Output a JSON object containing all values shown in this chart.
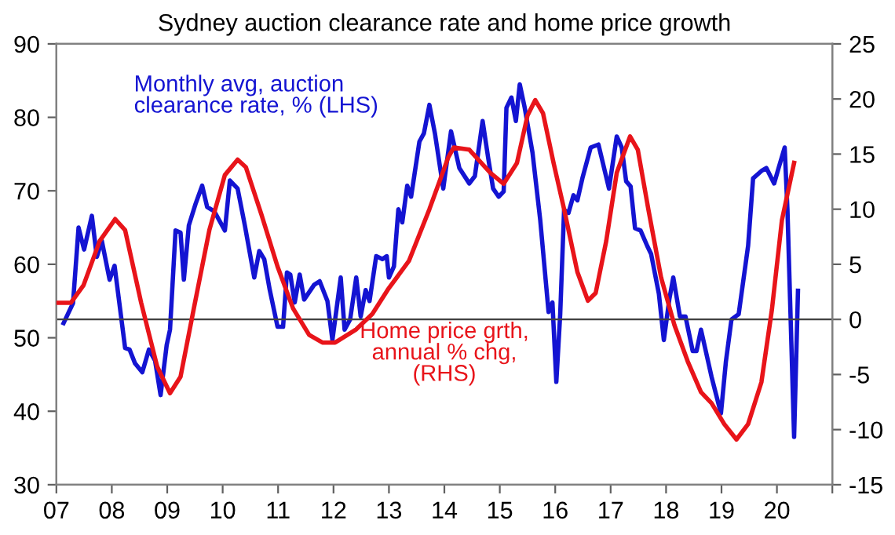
{
  "chart_data": {
    "type": "line",
    "title": "Sydney auction clearance rate and home price growth",
    "xlim": [
      2007,
      2021
    ],
    "xticks": [
      {
        "value": 2007,
        "label": "07"
      },
      {
        "value": 2008,
        "label": "08"
      },
      {
        "value": 2009,
        "label": "09"
      },
      {
        "value": 2010,
        "label": "10"
      },
      {
        "value": 2011,
        "label": "11"
      },
      {
        "value": 2012,
        "label": "12"
      },
      {
        "value": 2013,
        "label": "13"
      },
      {
        "value": 2014,
        "label": "14"
      },
      {
        "value": 2015,
        "label": "15"
      },
      {
        "value": 2016,
        "label": "16"
      },
      {
        "value": 2017,
        "label": "17"
      },
      {
        "value": 2018,
        "label": "18"
      },
      {
        "value": 2019,
        "label": "19"
      },
      {
        "value": 2020,
        "label": "20"
      },
      {
        "value": 2021,
        "label": null
      }
    ],
    "ylim": [
      30,
      90
    ],
    "yticks": [
      30,
      40,
      50,
      60,
      70,
      80,
      90
    ],
    "y2lim": [
      -15,
      25
    ],
    "y2ticks": [
      -15,
      -10,
      -5,
      0,
      5,
      10,
      15,
      20,
      25
    ],
    "ref_lines": [
      {
        "axis": "y2",
        "value": 0,
        "color": "#404040"
      }
    ],
    "grid": false,
    "legend": false,
    "marker": "none",
    "line_style": "solid",
    "series": [
      {
        "name": "Monthly avg, auction\nclearance rate, % (LHS)",
        "color": "#1414d2",
        "axis": "y",
        "x": [
          2007.13,
          2007.3,
          2007.4,
          2007.5,
          2007.64,
          2007.73,
          2007.82,
          2007.96,
          2008.05,
          2008.24,
          2008.32,
          2008.42,
          2008.55,
          2008.67,
          2008.78,
          2008.88,
          2008.99,
          2009.05,
          2009.15,
          2009.24,
          2009.3,
          2009.39,
          2009.51,
          2009.63,
          2009.72,
          2009.85,
          2010.04,
          2010.13,
          2010.27,
          2010.4,
          2010.57,
          2010.66,
          2010.75,
          2010.85,
          2010.99,
          2011.09,
          2011.16,
          2011.22,
          2011.3,
          2011.39,
          2011.47,
          2011.65,
          2011.75,
          2011.89,
          2011.98,
          2012.13,
          2012.2,
          2012.3,
          2012.41,
          2012.49,
          2012.58,
          2012.65,
          2012.77,
          2012.88,
          2012.96,
          2013.0,
          2013.09,
          2013.17,
          2013.24,
          2013.33,
          2013.4,
          2013.55,
          2013.63,
          2013.73,
          2013.83,
          2013.98,
          2014.12,
          2014.27,
          2014.45,
          2014.55,
          2014.69,
          2014.79,
          2014.88,
          2014.98,
          2015.07,
          2015.12,
          2015.21,
          2015.29,
          2015.36,
          2015.45,
          2015.59,
          2015.73,
          2015.88,
          2015.95,
          2016.02,
          2016.09,
          2016.16,
          2016.24,
          2016.33,
          2016.4,
          2016.49,
          2016.64,
          2016.78,
          2016.97,
          2017.11,
          2017.2,
          2017.28,
          2017.36,
          2017.44,
          2017.54,
          2017.66,
          2017.73,
          2017.87,
          2017.96,
          2018.06,
          2018.13,
          2018.25,
          2018.35,
          2018.48,
          2018.55,
          2018.63,
          2018.82,
          2018.99,
          2019.08,
          2019.18,
          2019.31,
          2019.48,
          2019.57,
          2019.72,
          2019.81,
          2019.95,
          2020.03,
          2020.14,
          2020.19,
          2020.31,
          2020.38
        ],
        "values": [
          52.0,
          54.7,
          65,
          62,
          66.6,
          61,
          63.2,
          57.9,
          59.8,
          48.6,
          48.4,
          46.5,
          45.3,
          48.4,
          46.9,
          42.2,
          49,
          51.1,
          64.6,
          64.3,
          57.9,
          65.3,
          68.2,
          70.7,
          67.8,
          67.2,
          64.6,
          71.4,
          70.3,
          65.3,
          58.2,
          61.8,
          60.7,
          56.5,
          51.5,
          51.5,
          58.9,
          58.6,
          54.8,
          58.6,
          55.2,
          57.2,
          57.7,
          55,
          49.7,
          58.2,
          51.1,
          52.5,
          58.2,
          52.9,
          56.5,
          55,
          61.1,
          60.7,
          61.1,
          58.2,
          59.7,
          67.5,
          65.7,
          70.7,
          69.2,
          76.7,
          77.8,
          81.7,
          77.8,
          70.3,
          78.1,
          73.1,
          71,
          72,
          79.5,
          74.5,
          70.3,
          69.2,
          69.9,
          81.3,
          82.7,
          79.5,
          84.5,
          81.3,
          75.2,
          66,
          53.5,
          54.8,
          44,
          53.2,
          67.4,
          67,
          69.4,
          68.7,
          71.7,
          75.9,
          76.3,
          70.3,
          77.4,
          75.9,
          71.3,
          70.6,
          64.9,
          64.6,
          62.5,
          61.4,
          56,
          49.7,
          55.3,
          58.2,
          52.9,
          52.9,
          48.2,
          48.2,
          51.1,
          44.7,
          39.7,
          46.8,
          52.5,
          53.2,
          62.5,
          71.7,
          72.7,
          73.1,
          71,
          73.1,
          75.9,
          67.4,
          36.5,
          56.4
        ]
      },
      {
        "name": "Home price grth,\nannual % chg,\n(RHS)",
        "color": "#e8141a",
        "axis": "y2",
        "x": [
          2007.0,
          2007.26,
          2007.49,
          2007.78,
          2008.06,
          2008.24,
          2008.53,
          2008.82,
          2009.05,
          2009.24,
          2009.48,
          2009.76,
          2010.04,
          2010.27,
          2010.42,
          2010.7,
          2010.99,
          2011.27,
          2011.56,
          2011.8,
          2012.03,
          2012.41,
          2012.7,
          2012.98,
          2013.36,
          2013.73,
          2014.07,
          2014.17,
          2014.45,
          2014.83,
          2015.07,
          2015.31,
          2015.5,
          2015.64,
          2015.78,
          2015.97,
          2016.16,
          2016.4,
          2016.59,
          2016.73,
          2016.92,
          2017.11,
          2017.35,
          2017.49,
          2017.68,
          2017.91,
          2018.15,
          2018.39,
          2018.63,
          2018.82,
          2019.05,
          2019.27,
          2019.48,
          2019.72,
          2019.91,
          2020.09,
          2020.31
        ],
        "values": [
          1.5,
          1.5,
          3.1,
          7.1,
          9.1,
          8.1,
          1.5,
          -4.3,
          -6.7,
          -5.2,
          1,
          8.1,
          13.1,
          14.5,
          13.8,
          9.5,
          4.8,
          1,
          -1.4,
          -2.1,
          -2.1,
          -0.9,
          0.5,
          2.7,
          5.3,
          10,
          14.7,
          15.6,
          15.4,
          13.3,
          12.3,
          14.2,
          18.5,
          19.9,
          18.7,
          14.2,
          10,
          4.3,
          1.7,
          2.4,
          7.1,
          13.3,
          16.6,
          15.4,
          10,
          3.8,
          -0.5,
          -3.8,
          -6.6,
          -7.6,
          -9.5,
          -10.9,
          -9.5,
          -5.7,
          0.9,
          9,
          14.2
        ]
      }
    ]
  }
}
